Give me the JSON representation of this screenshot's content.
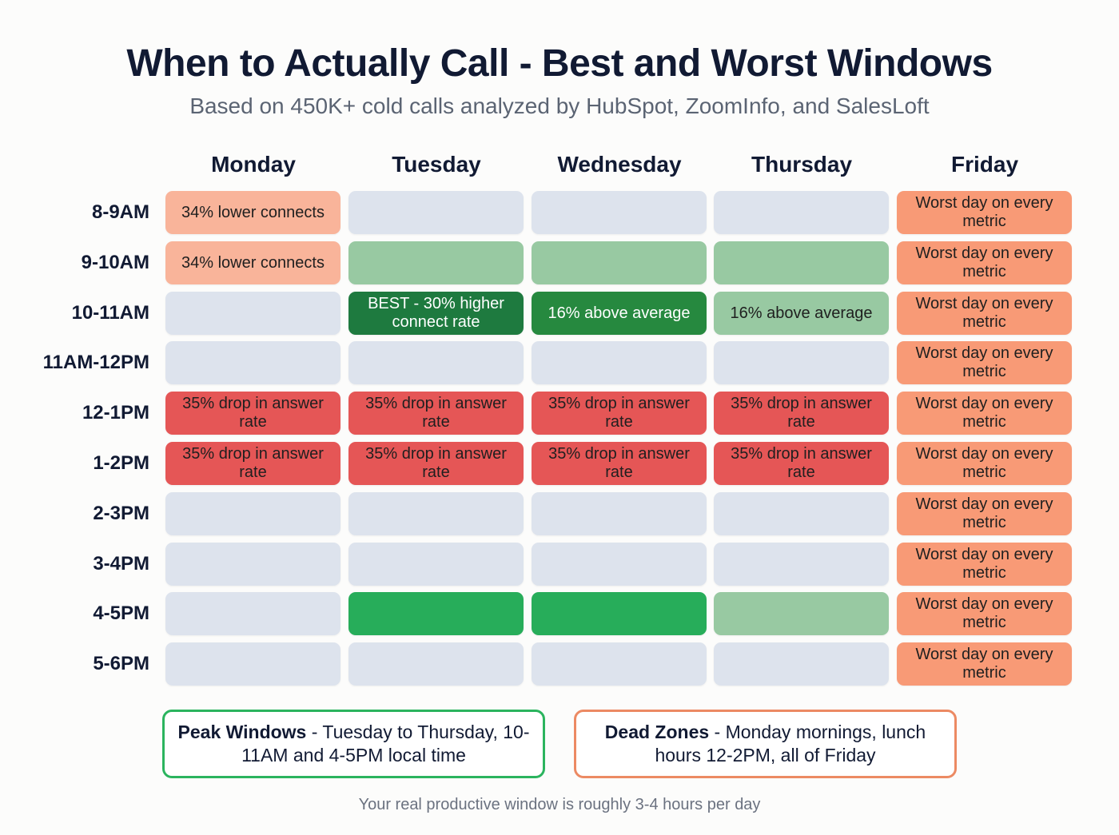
{
  "header": {
    "title": "When to Actually Call - Best and Worst Windows",
    "subtitle": "Based on 450K+ cold calls analyzed by HubSpot, ZoomInfo, and SalesLoft"
  },
  "chart_data": {
    "type": "heatmap",
    "title": "When to Actually Call - Best and Worst Windows",
    "subtitle": "Based on 450K+ cold calls analyzed by HubSpot, ZoomInfo, and SalesLoft",
    "columns": [
      "Monday",
      "Tuesday",
      "Wednesday",
      "Thursday",
      "Friday"
    ],
    "rows": [
      "8-9AM",
      "9-10AM",
      "10-11AM",
      "11AM-12PM",
      "12-1PM",
      "1-2PM",
      "2-3PM",
      "3-4PM",
      "4-5PM",
      "5-6PM"
    ],
    "legend_levels": {
      "neutral": "#dde3ed",
      "light-orange": "#f9b49a",
      "orange": "#f89a76",
      "red": "#e55656",
      "light-green": "#98c9a2",
      "mid-green": "#26893f",
      "dark-green": "#1e7a3f",
      "bright-green": "#27ad5a"
    },
    "cells": [
      [
        {
          "level": "light-orange",
          "text": "34% lower connects"
        },
        {
          "level": "neutral",
          "text": ""
        },
        {
          "level": "neutral",
          "text": ""
        },
        {
          "level": "neutral",
          "text": ""
        },
        {
          "level": "orange",
          "text": "Worst day on every metric"
        }
      ],
      [
        {
          "level": "light-orange",
          "text": "34% lower connects"
        },
        {
          "level": "light-green",
          "text": ""
        },
        {
          "level": "light-green",
          "text": ""
        },
        {
          "level": "light-green",
          "text": ""
        },
        {
          "level": "orange",
          "text": "Worst day on every metric"
        }
      ],
      [
        {
          "level": "neutral",
          "text": ""
        },
        {
          "level": "dark-green",
          "text": "BEST - 30% higher connect rate"
        },
        {
          "level": "mid-green",
          "text": "16% above average"
        },
        {
          "level": "light-green",
          "text": "16% above average"
        },
        {
          "level": "orange",
          "text": "Worst day on every metric"
        }
      ],
      [
        {
          "level": "neutral",
          "text": ""
        },
        {
          "level": "neutral",
          "text": ""
        },
        {
          "level": "neutral",
          "text": ""
        },
        {
          "level": "neutral",
          "text": ""
        },
        {
          "level": "orange",
          "text": "Worst day on every metric"
        }
      ],
      [
        {
          "level": "red",
          "text": "35% drop in answer rate"
        },
        {
          "level": "red",
          "text": "35% drop in answer rate"
        },
        {
          "level": "red",
          "text": "35% drop in answer rate"
        },
        {
          "level": "red",
          "text": "35% drop in answer rate"
        },
        {
          "level": "orange",
          "text": "Worst day on every metric"
        }
      ],
      [
        {
          "level": "red",
          "text": "35% drop in answer rate"
        },
        {
          "level": "red",
          "text": "35% drop in answer rate"
        },
        {
          "level": "red",
          "text": "35% drop in answer rate"
        },
        {
          "level": "red",
          "text": "35% drop in answer rate"
        },
        {
          "level": "orange",
          "text": "Worst day on every metric"
        }
      ],
      [
        {
          "level": "neutral",
          "text": ""
        },
        {
          "level": "neutral",
          "text": ""
        },
        {
          "level": "neutral",
          "text": ""
        },
        {
          "level": "neutral",
          "text": ""
        },
        {
          "level": "orange",
          "text": "Worst day on every metric"
        }
      ],
      [
        {
          "level": "neutral",
          "text": ""
        },
        {
          "level": "neutral",
          "text": ""
        },
        {
          "level": "neutral",
          "text": ""
        },
        {
          "level": "neutral",
          "text": ""
        },
        {
          "level": "orange",
          "text": "Worst day on every metric"
        }
      ],
      [
        {
          "level": "neutral",
          "text": ""
        },
        {
          "level": "bright-green",
          "text": ""
        },
        {
          "level": "bright-green",
          "text": ""
        },
        {
          "level": "light-green",
          "text": ""
        },
        {
          "level": "orange",
          "text": "Worst day on every metric"
        }
      ],
      [
        {
          "level": "neutral",
          "text": ""
        },
        {
          "level": "neutral",
          "text": ""
        },
        {
          "level": "neutral",
          "text": ""
        },
        {
          "level": "neutral",
          "text": ""
        },
        {
          "level": "orange",
          "text": "Worst day on every metric"
        }
      ]
    ]
  },
  "callouts": {
    "peak": {
      "bold": "Peak Windows",
      "rest": " - Tuesday to Thursday, 10-11AM and 4-5PM local time",
      "border_color": "#2bb45e"
    },
    "dead": {
      "bold": "Dead Zones",
      "rest": " - Monday mornings, lunch hours 12-2PM, all of Friday",
      "border_color": "#ec8a63"
    }
  },
  "footer": {
    "note": "Your real productive window is roughly 3-4 hours per day"
  }
}
